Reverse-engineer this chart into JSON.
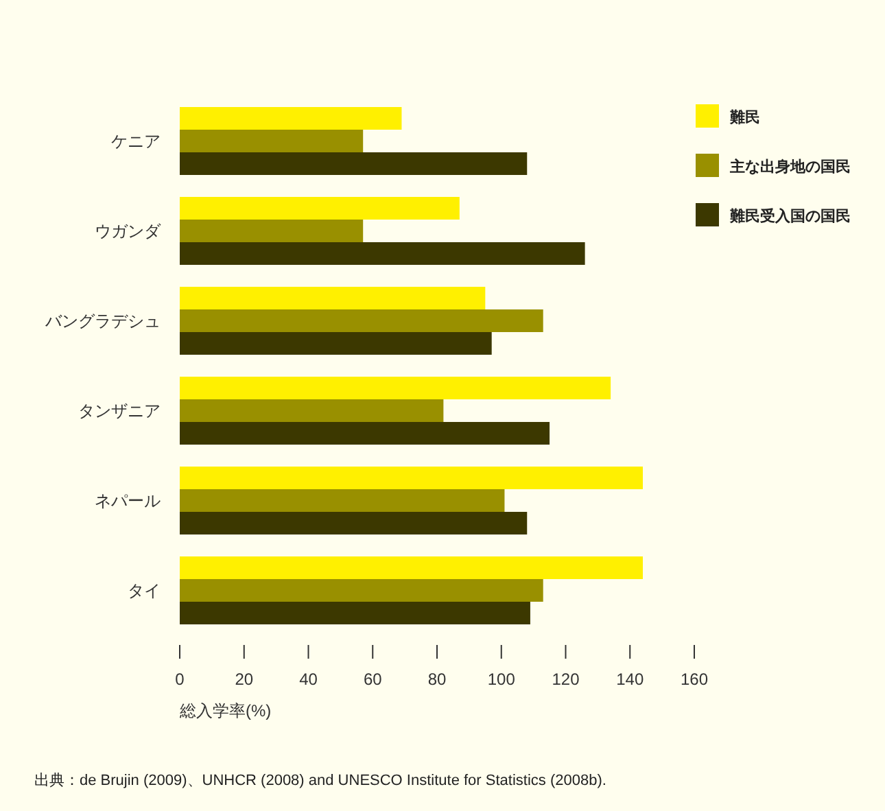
{
  "chart_data": {
    "type": "bar",
    "orientation": "horizontal",
    "categories": [
      "ケニア",
      "ウガンダ",
      "バングラデシュ",
      "タンザニア",
      "ネパール",
      "タイ"
    ],
    "series": [
      {
        "name": "難民",
        "color": "#fff000",
        "values": [
          69,
          87,
          95,
          134,
          144,
          144
        ]
      },
      {
        "name": "主な出身地の国民",
        "color": "#999000",
        "values": [
          57,
          57,
          113,
          82,
          101,
          113
        ]
      },
      {
        "name": "難民受入国の国民",
        "color": "#3c3800",
        "values": [
          108,
          126,
          97,
          115,
          108,
          109
        ]
      }
    ],
    "xlim": [
      0,
      160
    ],
    "xticks": [
      0,
      20,
      40,
      60,
      80,
      100,
      120,
      140,
      160
    ],
    "xlabel": "総入学率(%)",
    "legend": "top right",
    "grid": false,
    "annotations": [
      "出典：de Brujin (2009)、UNHCR (2008) and UNESCO Institute for Statistics (2008b)."
    ]
  }
}
